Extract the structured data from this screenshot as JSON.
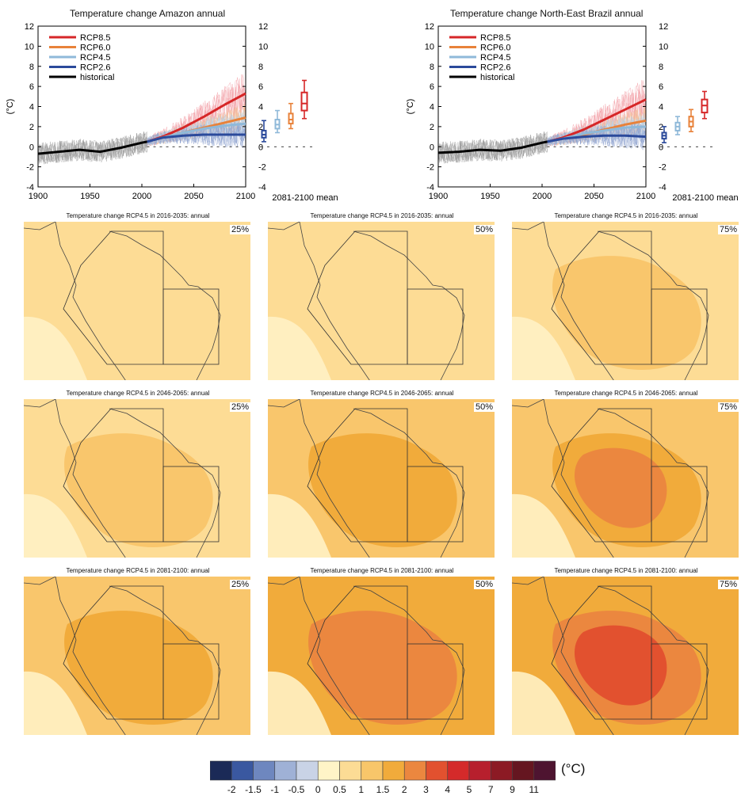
{
  "chart_data": [
    {
      "type": "line",
      "title": "Temperature change Amazon annual",
      "ylabel": "(°C)",
      "xlim": [
        1900,
        2100
      ],
      "ylim": [
        -4,
        12
      ],
      "x_ticks": [
        1900,
        1950,
        2000,
        2050,
        2100
      ],
      "y_ticks": [
        -4,
        -2,
        0,
        2,
        4,
        6,
        8,
        10,
        12
      ],
      "legend_position": "top-left",
      "series": [
        {
          "name": "RCP8.5",
          "color": "#d62728",
          "x": [
            2005,
            2020,
            2040,
            2060,
            2080,
            2100
          ],
          "values": [
            0.5,
            1.0,
            1.9,
            3.0,
            4.2,
            5.3
          ]
        },
        {
          "name": "RCP6.0",
          "color": "#e8823a",
          "x": [
            2005,
            2020,
            2040,
            2060,
            2080,
            2100
          ],
          "values": [
            0.5,
            0.9,
            1.4,
            1.9,
            2.4,
            2.9
          ]
        },
        {
          "name": "RCP4.5",
          "color": "#8fb9d9",
          "x": [
            2005,
            2020,
            2040,
            2060,
            2080,
            2100
          ],
          "values": [
            0.5,
            0.9,
            1.4,
            1.8,
            2.1,
            2.3
          ]
        },
        {
          "name": "RCP2.6",
          "color": "#2b4a9b",
          "x": [
            2005,
            2020,
            2040,
            2060,
            2080,
            2100
          ],
          "values": [
            0.5,
            0.9,
            1.1,
            1.2,
            1.2,
            1.2
          ]
        },
        {
          "name": "historical",
          "color": "#000000",
          "x": [
            1900,
            1920,
            1940,
            1960,
            1980,
            2000,
            2005
          ],
          "values": [
            -0.7,
            -0.5,
            -0.3,
            -0.5,
            -0.1,
            0.4,
            0.5
          ]
        }
      ],
      "boxes_label": "2081-2100 mean",
      "boxes": [
        {
          "name": "RCP2.6",
          "color": "#2b4a9b",
          "whisker_low": 0.5,
          "q1": 0.9,
          "median": 1.2,
          "q3": 1.6,
          "whisker_high": 2.6
        },
        {
          "name": "RCP4.5",
          "color": "#8fb9d9",
          "whisker_low": 1.4,
          "q1": 1.8,
          "median": 2.2,
          "q3": 2.7,
          "whisker_high": 3.6
        },
        {
          "name": "RCP6.0",
          "color": "#e8823a",
          "whisker_low": 1.8,
          "q1": 2.3,
          "median": 2.7,
          "q3": 3.3,
          "whisker_high": 4.3
        },
        {
          "name": "RCP8.5",
          "color": "#d62728",
          "whisker_low": 2.8,
          "q1": 3.6,
          "median": 4.3,
          "q3": 5.4,
          "whisker_high": 6.6
        }
      ]
    },
    {
      "type": "line",
      "title": "Temperature change North-East Brazil annual",
      "ylabel": "(°C)",
      "xlim": [
        1900,
        2100
      ],
      "ylim": [
        -4,
        12
      ],
      "x_ticks": [
        1900,
        1950,
        2000,
        2050,
        2100
      ],
      "y_ticks": [
        -4,
        -2,
        0,
        2,
        4,
        6,
        8,
        10,
        12
      ],
      "legend_position": "top-left",
      "series": [
        {
          "name": "RCP8.5",
          "color": "#d62728",
          "x": [
            2005,
            2020,
            2040,
            2060,
            2080,
            2100
          ],
          "values": [
            0.5,
            0.9,
            1.7,
            2.7,
            3.7,
            4.7
          ]
        },
        {
          "name": "RCP6.0",
          "color": "#e8823a",
          "x": [
            2005,
            2020,
            2040,
            2060,
            2080,
            2100
          ],
          "values": [
            0.5,
            0.8,
            1.2,
            1.7,
            2.2,
            2.6
          ]
        },
        {
          "name": "RCP4.5",
          "color": "#8fb9d9",
          "x": [
            2005,
            2020,
            2040,
            2060,
            2080,
            2100
          ],
          "values": [
            0.5,
            0.8,
            1.3,
            1.6,
            1.9,
            2.0
          ]
        },
        {
          "name": "RCP2.6",
          "color": "#2b4a9b",
          "x": [
            2005,
            2020,
            2040,
            2060,
            2080,
            2100
          ],
          "values": [
            0.5,
            0.8,
            1.0,
            1.1,
            1.1,
            1.0
          ]
        },
        {
          "name": "historical",
          "color": "#000000",
          "x": [
            1900,
            1920,
            1940,
            1960,
            1980,
            2000,
            2005
          ],
          "values": [
            -0.6,
            -0.5,
            -0.3,
            -0.4,
            -0.1,
            0.4,
            0.5
          ]
        }
      ],
      "boxes_label": "2081-2100 mean",
      "boxes": [
        {
          "name": "RCP2.6",
          "color": "#2b4a9b",
          "whisker_low": 0.4,
          "q1": 0.8,
          "median": 1.1,
          "q3": 1.4,
          "whisker_high": 2.0
        },
        {
          "name": "RCP4.5",
          "color": "#8fb9d9",
          "whisker_low": 1.2,
          "q1": 1.6,
          "median": 2.0,
          "q3": 2.4,
          "whisker_high": 3.0
        },
        {
          "name": "RCP6.0",
          "color": "#e8823a",
          "whisker_low": 1.5,
          "q1": 2.0,
          "median": 2.5,
          "q3": 3.0,
          "whisker_high": 3.7
        },
        {
          "name": "RCP8.5",
          "color": "#d62728",
          "whisker_low": 2.8,
          "q1": 3.4,
          "median": 4.1,
          "q3": 4.7,
          "whisker_high": 5.5
        }
      ]
    },
    {
      "type": "heatmap",
      "panels": [
        {
          "title": "Temperature change RCP4.5 in 2016-2035: annual",
          "percentile": "25%",
          "base_level": 0.5,
          "inner_level": 0.5,
          "hot_level": null
        },
        {
          "title": "Temperature change RCP4.5 in 2016-2035: annual",
          "percentile": "50%",
          "base_level": 0.5,
          "inner_level": 0.5,
          "hot_level": null
        },
        {
          "title": "Temperature change RCP4.5 in 2016-2035: annual",
          "percentile": "75%",
          "base_level": 0.5,
          "inner_level": 1,
          "hot_level": null
        },
        {
          "title": "Temperature change RCP4.5 in 2046-2065: annual",
          "percentile": "25%",
          "base_level": 0.5,
          "inner_level": 1,
          "hot_level": null
        },
        {
          "title": "Temperature change RCP4.5 in 2046-2065: annual",
          "percentile": "50%",
          "base_level": 1,
          "inner_level": 1.5,
          "hot_level": null
        },
        {
          "title": "Temperature change RCP4.5 in 2046-2065: annual",
          "percentile": "75%",
          "base_level": 1,
          "inner_level": 1.5,
          "hot_level": 2
        },
        {
          "title": "Temperature change RCP4.5 in 2081-2100: annual",
          "percentile": "25%",
          "base_level": 1,
          "inner_level": 1.5,
          "hot_level": null
        },
        {
          "title": "Temperature change RCP4.5 in 2081-2100: annual",
          "percentile": "50%",
          "base_level": 1.5,
          "inner_level": 2,
          "hot_level": null
        },
        {
          "title": "Temperature change RCP4.5 in 2081-2100: annual",
          "percentile": "75%",
          "base_level": 1.5,
          "inner_level": 2,
          "hot_level": 3
        }
      ]
    }
  ],
  "colorbar": {
    "unit": "(°C)",
    "ticks": [
      "-2",
      "-1.5",
      "-1",
      "-0.5",
      "0",
      "0.5",
      "1",
      "1.5",
      "2",
      "3",
      "4",
      "5",
      "7",
      "9",
      "11"
    ],
    "colors": [
      "#1b2a57",
      "#3a58a0",
      "#6e87bf",
      "#9fb1d6",
      "#c9d3e6",
      "#fff4c7",
      "#fcdc95",
      "#f8c66a",
      "#f1ab3b",
      "#eb873f",
      "#e2512f",
      "#d42a2a",
      "#b71f2d",
      "#8c1a24",
      "#651620",
      "#4e1430"
    ],
    "level_colors": {
      "0.5": "#fddc95",
      "1": "#f9c66c",
      "1.5": "#f1ab3b",
      "2": "#eb873f",
      "3": "#e2512f"
    }
  }
}
